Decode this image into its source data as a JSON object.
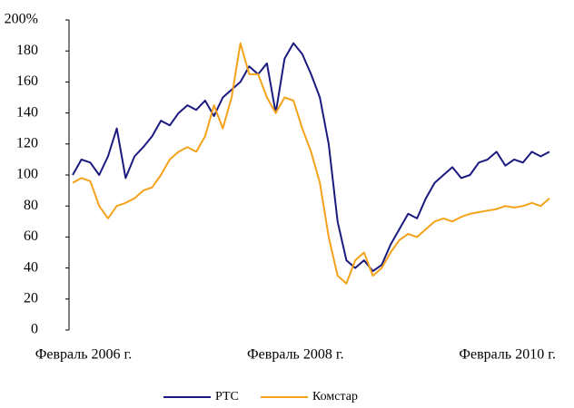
{
  "chart_data": {
    "type": "line",
    "categories": [
      "Февраль 2006 г.",
      null,
      null,
      null,
      null,
      null,
      null,
      null,
      null,
      null,
      null,
      null,
      null,
      null,
      null,
      null,
      null,
      null,
      null,
      null,
      null,
      null,
      null,
      null,
      "Февраль 2008 г.",
      null,
      null,
      null,
      null,
      null,
      null,
      null,
      null,
      null,
      null,
      null,
      null,
      null,
      null,
      null,
      null,
      null,
      null,
      null,
      null,
      null,
      null,
      null,
      "Февраль 2010 г.",
      null,
      null,
      null,
      null,
      null,
      null
    ],
    "series": [
      {
        "name": "РТС",
        "color": "#1a1a80",
        "values": [
          100,
          110,
          108,
          100,
          112,
          130,
          98,
          112,
          118,
          125,
          135,
          132,
          140,
          145,
          142,
          148,
          138,
          150,
          155,
          160,
          170,
          165,
          172,
          140,
          175,
          185,
          178,
          165,
          150,
          120,
          70,
          45,
          40,
          45,
          38,
          42,
          55,
          65,
          75,
          72,
          85,
          95,
          100,
          105,
          98,
          100,
          108,
          110,
          115,
          106,
          110,
          108,
          115,
          112,
          115
        ]
      },
      {
        "name": "Комстар",
        "color": "#f5a21b",
        "values": [
          95,
          98,
          96,
          80,
          72,
          80,
          82,
          85,
          90,
          92,
          100,
          110,
          115,
          118,
          115,
          125,
          145,
          130,
          150,
          185,
          165,
          165,
          150,
          140,
          150,
          148,
          130,
          115,
          95,
          60,
          35,
          30,
          45,
          50,
          35,
          40,
          50,
          58,
          62,
          60,
          65,
          70,
          72,
          70,
          73,
          75,
          76,
          77,
          78,
          80,
          79,
          80,
          82,
          80,
          85
        ]
      }
    ],
    "ylim": [
      0,
      200
    ],
    "yticks": [
      0,
      20,
      40,
      60,
      80,
      100,
      120,
      140,
      160,
      180,
      {
        "value": 200,
        "label": "200%"
      }
    ],
    "legend": "bottom"
  }
}
